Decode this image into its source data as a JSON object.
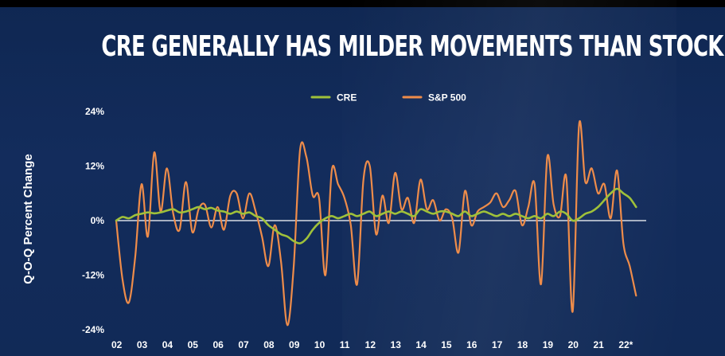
{
  "chart_data": {
    "type": "line",
    "title": "CRE GENERALLY HAS MILDER MOVEMENTS THAN STOCK MARKET",
    "ylabel": "Q-O-Q Percent Change",
    "xlabel": "",
    "ylim": [
      -24,
      24
    ],
    "xlim": [
      2002,
      2022.9
    ],
    "y_ticks": [
      24,
      12,
      0,
      -12,
      -24
    ],
    "y_tick_labels": [
      "24%",
      "12%",
      "0%",
      "-12%",
      "-24%"
    ],
    "x_ticks": [
      2002,
      2003,
      2004,
      2005,
      2006,
      2007,
      2008,
      2009,
      2010,
      2011,
      2012,
      2013,
      2014,
      2015,
      2016,
      2017,
      2018,
      2019,
      2020,
      2021,
      2022
    ],
    "x_tick_labels": [
      "02",
      "03",
      "04",
      "05",
      "06",
      "07",
      "08",
      "09",
      "10",
      "11",
      "12",
      "13",
      "14",
      "15",
      "16",
      "17",
      "18",
      "19",
      "20",
      "21",
      "22*"
    ],
    "legend_position": "top-center",
    "grid": false,
    "colors": {
      "cre": "#9fc13a",
      "sp500": "#ee8c4a",
      "zero_line": "#ffffff"
    },
    "series": [
      {
        "name": "CRE",
        "x": [
          2002.0,
          2002.25,
          2002.5,
          2002.75,
          2003.0,
          2003.25,
          2003.5,
          2003.75,
          2004.0,
          2004.25,
          2004.5,
          2004.75,
          2005.0,
          2005.25,
          2005.5,
          2005.75,
          2006.0,
          2006.25,
          2006.5,
          2006.75,
          2007.0,
          2007.25,
          2007.5,
          2007.75,
          2008.0,
          2008.25,
          2008.5,
          2008.75,
          2009.0,
          2009.25,
          2009.5,
          2009.75,
          2010.0,
          2010.25,
          2010.5,
          2010.75,
          2011.0,
          2011.25,
          2011.5,
          2011.75,
          2012.0,
          2012.25,
          2012.5,
          2012.75,
          2013.0,
          2013.25,
          2013.5,
          2013.75,
          2014.0,
          2014.25,
          2014.5,
          2014.75,
          2015.0,
          2015.25,
          2015.5,
          2015.75,
          2016.0,
          2016.25,
          2016.5,
          2016.75,
          2017.0,
          2017.25,
          2017.5,
          2017.75,
          2018.0,
          2018.25,
          2018.5,
          2018.75,
          2019.0,
          2019.25,
          2019.5,
          2019.75,
          2020.0,
          2020.25,
          2020.5,
          2020.75,
          2021.0,
          2021.25,
          2021.5,
          2021.75,
          2022.0,
          2022.25,
          2022.5
        ],
        "values": [
          0.0,
          0.8,
          0.5,
          1.2,
          1.5,
          1.8,
          1.6,
          1.8,
          2.2,
          2.5,
          1.8,
          2.0,
          2.5,
          3.0,
          2.5,
          2.8,
          2.2,
          2.0,
          1.5,
          2.0,
          1.5,
          1.8,
          1.0,
          0.5,
          -1.0,
          -2.0,
          -3.0,
          -3.5,
          -4.5,
          -5.0,
          -4.0,
          -2.0,
          -0.5,
          0.5,
          1.0,
          0.5,
          1.0,
          1.5,
          1.0,
          1.5,
          2.0,
          1.0,
          1.5,
          2.0,
          1.5,
          2.0,
          1.5,
          1.0,
          2.5,
          2.0,
          1.5,
          2.0,
          2.0,
          1.5,
          1.0,
          2.0,
          1.0,
          1.5,
          2.0,
          1.5,
          1.0,
          1.5,
          1.0,
          1.5,
          1.0,
          0.5,
          1.0,
          0.5,
          1.5,
          1.0,
          2.0,
          1.5,
          0.0,
          0.5,
          1.5,
          2.0,
          3.0,
          4.5,
          6.0,
          7.0,
          6.0,
          5.0,
          3.0
        ]
      },
      {
        "name": "S&P 500",
        "x": [
          2002.0,
          2002.25,
          2002.5,
          2002.75,
          2003.0,
          2003.25,
          2003.5,
          2003.75,
          2004.0,
          2004.25,
          2004.5,
          2004.75,
          2005.0,
          2005.25,
          2005.5,
          2005.75,
          2006.0,
          2006.25,
          2006.5,
          2006.75,
          2007.0,
          2007.25,
          2007.5,
          2007.75,
          2008.0,
          2008.25,
          2008.5,
          2008.75,
          2009.0,
          2009.25,
          2009.5,
          2009.75,
          2010.0,
          2010.25,
          2010.5,
          2010.75,
          2011.0,
          2011.25,
          2011.5,
          2011.75,
          2012.0,
          2012.25,
          2012.5,
          2012.75,
          2013.0,
          2013.25,
          2013.5,
          2013.75,
          2014.0,
          2014.25,
          2014.5,
          2014.75,
          2015.0,
          2015.25,
          2015.5,
          2015.75,
          2016.0,
          2016.25,
          2016.5,
          2016.75,
          2017.0,
          2017.25,
          2017.5,
          2017.75,
          2018.0,
          2018.25,
          2018.5,
          2018.75,
          2019.0,
          2019.25,
          2019.5,
          2019.75,
          2020.0,
          2020.25,
          2020.5,
          2020.75,
          2021.0,
          2021.25,
          2021.5,
          2021.75,
          2022.0,
          2022.25,
          2022.5
        ],
        "values": [
          0.0,
          -13.0,
          -18.0,
          -8.0,
          8.0,
          -3.5,
          15.0,
          2.0,
          11.5,
          1.5,
          -2.0,
          8.5,
          -2.5,
          2.5,
          3.5,
          -1.5,
          3.0,
          -2.0,
          5.5,
          6.0,
          0.5,
          6.0,
          2.0,
          -3.5,
          -10.0,
          -1.0,
          -9.0,
          -23.0,
          -10.0,
          15.5,
          14.0,
          5.5,
          5.0,
          -12.0,
          11.0,
          8.0,
          5.0,
          -1.0,
          -14.0,
          9.0,
          12.0,
          -3.0,
          5.5,
          -0.5,
          10.5,
          2.5,
          5.0,
          -0.5,
          9.0,
          2.5,
          4.5,
          0.0,
          2.5,
          0.5,
          -7.0,
          6.5,
          -1.0,
          2.0,
          3.0,
          4.0,
          6.0,
          3.0,
          4.5,
          6.5,
          -1.0,
          3.0,
          8.0,
          -14.0,
          14.0,
          3.5,
          1.0,
          9.5,
          -20.0,
          21.0,
          8.5,
          11.5,
          6.0,
          8.0,
          0.5,
          11.0,
          -5.0,
          -10.0,
          -16.5
        ]
      }
    ]
  }
}
